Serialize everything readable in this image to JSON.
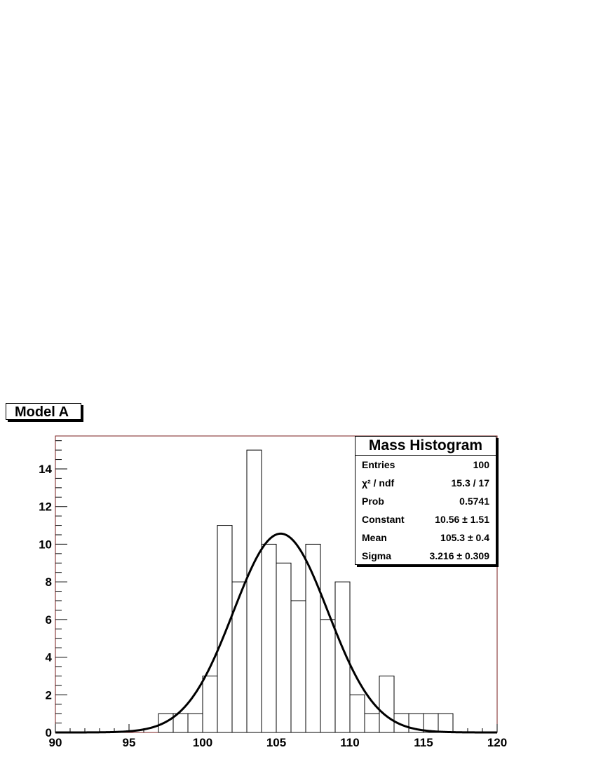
{
  "pad_title": "Model A",
  "stats_box": {
    "title": "Mass Histogram",
    "rows": [
      {
        "label": "Entries",
        "value": "100"
      },
      {
        "label": "χ² / ndf",
        "value": "15.3 / 17"
      },
      {
        "label": "Prob",
        "value": "0.5741"
      },
      {
        "label": "Constant",
        "value": "10.56 ± 1.51"
      },
      {
        "label": "Mean",
        "value": "105.3 ± 0.4"
      },
      {
        "label": "Sigma",
        "value": "3.216 ± 0.309"
      }
    ]
  },
  "chart_data": {
    "type": "bar",
    "subtype": "histogram",
    "title": "",
    "xlabel": "",
    "ylabel": "",
    "xlim": [
      90,
      120
    ],
    "ylim": [
      0,
      15.75
    ],
    "bin_width": 1,
    "bins": [
      {
        "x": 97,
        "value": 1
      },
      {
        "x": 98,
        "value": 1
      },
      {
        "x": 99,
        "value": 1
      },
      {
        "x": 100,
        "value": 3
      },
      {
        "x": 101,
        "value": 11
      },
      {
        "x": 102,
        "value": 8
      },
      {
        "x": 103,
        "value": 15
      },
      {
        "x": 104,
        "value": 10
      },
      {
        "x": 105,
        "value": 9
      },
      {
        "x": 106,
        "value": 7
      },
      {
        "x": 107,
        "value": 10
      },
      {
        "x": 108,
        "value": 6
      },
      {
        "x": 109,
        "value": 8
      },
      {
        "x": 110,
        "value": 2
      },
      {
        "x": 111,
        "value": 1
      },
      {
        "x": 112,
        "value": 3
      },
      {
        "x": 113,
        "value": 1
      },
      {
        "x": 114,
        "value": 1
      },
      {
        "x": 115,
        "value": 1
      },
      {
        "x": 116,
        "value": 1
      }
    ],
    "fit": {
      "function": "gaus",
      "constant": 10.56,
      "mean": 105.3,
      "sigma": 3.216
    },
    "xticks": [
      90,
      95,
      100,
      105,
      110,
      115,
      120
    ],
    "yticks": [
      0,
      2,
      4,
      6,
      8,
      10,
      12,
      14
    ],
    "colors": {
      "frame": "#7a1c1c",
      "line": "#000000"
    }
  }
}
